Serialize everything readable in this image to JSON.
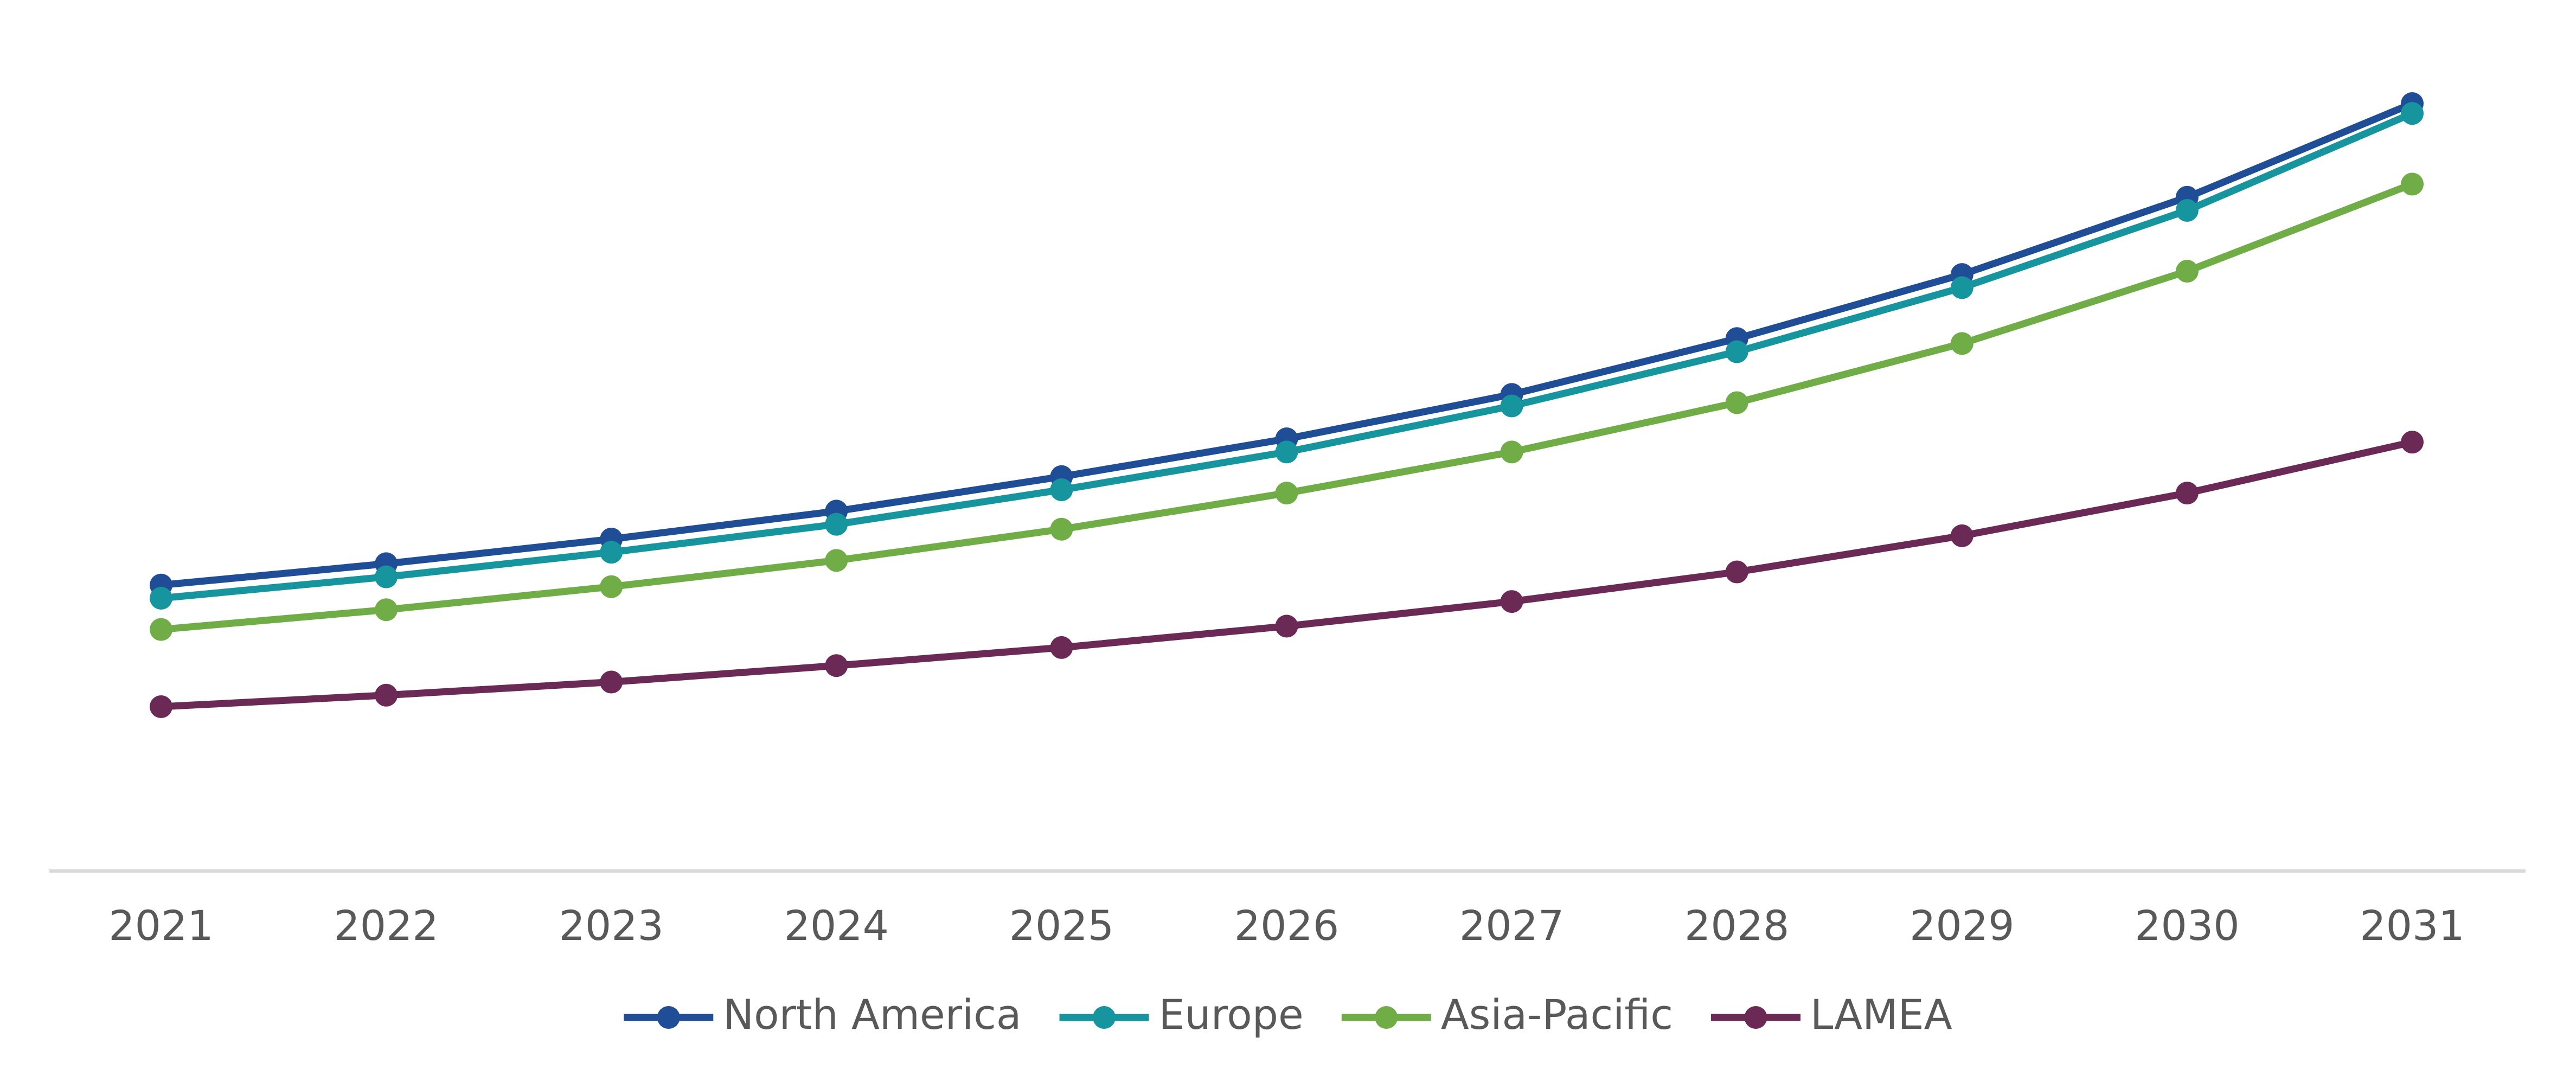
{
  "chart_data": {
    "type": "line",
    "categories": [
      "2021",
      "2022",
      "2023",
      "2024",
      "2025",
      "2026",
      "2027",
      "2028",
      "2029",
      "2030",
      "2031"
    ],
    "series": [
      {
        "name": "North America",
        "color": "#1f4e96",
        "values": [
          174,
          187,
          202,
          219,
          240,
          263,
          290,
          324,
          363,
          410,
          467
        ]
      },
      {
        "name": "Europe",
        "color": "#17959e",
        "values": [
          166,
          179,
          194,
          211,
          232,
          255,
          283,
          316,
          355,
          402,
          461
        ]
      },
      {
        "name": "Asia-Pacific",
        "color": "#70ad47",
        "values": [
          147,
          159,
          173,
          189,
          208,
          230,
          255,
          285,
          321,
          365,
          418
        ]
      },
      {
        "name": "LAMEA",
        "color": "#6b2a55",
        "values": [
          100,
          107,
          115,
          125,
          136,
          149,
          164,
          182,
          204,
          230,
          261
        ]
      }
    ],
    "ylim": [
      0,
      500
    ],
    "legend": "bottom"
  }
}
